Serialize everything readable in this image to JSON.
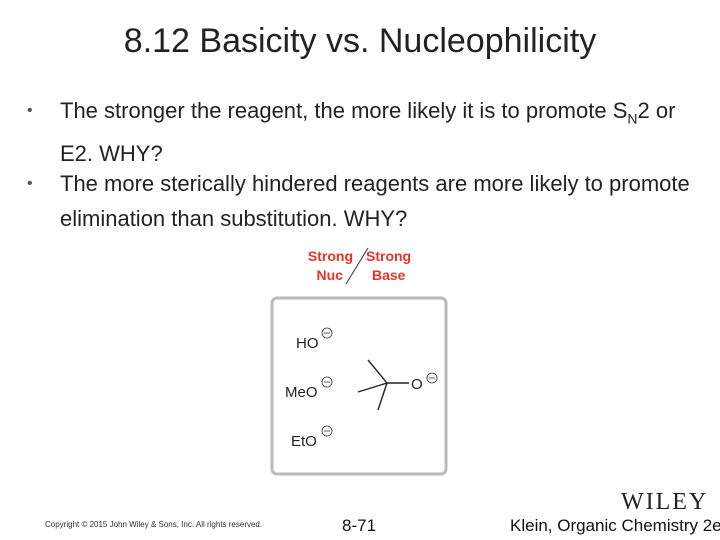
{
  "header": {
    "title": "8.12 Basicity vs. Nucleophilicity"
  },
  "bullets": [
    {
      "parts": [
        "The stronger the reagent, the more likely it is to promote S",
        "N",
        "2 or E2. WHY?"
      ]
    },
    {
      "parts": [
        "The more sterically hindered reagents are more likely to promote elimination than substitution. WHY?"
      ]
    }
  ],
  "figure": {
    "header_left": [
      "Strong",
      "Nuc"
    ],
    "header_right": [
      "Strong",
      "Base"
    ],
    "reagents": [
      "HO",
      "MeO",
      "EtO"
    ],
    "bulky_oxygen": "O"
  },
  "footer": {
    "copyright": "Copyright © 2015 John Wiley & Sons, Inc. All rights reserved.",
    "page": "8-71",
    "book": "Klein, Organic Chemistry 2e",
    "logo": "WILEY"
  }
}
